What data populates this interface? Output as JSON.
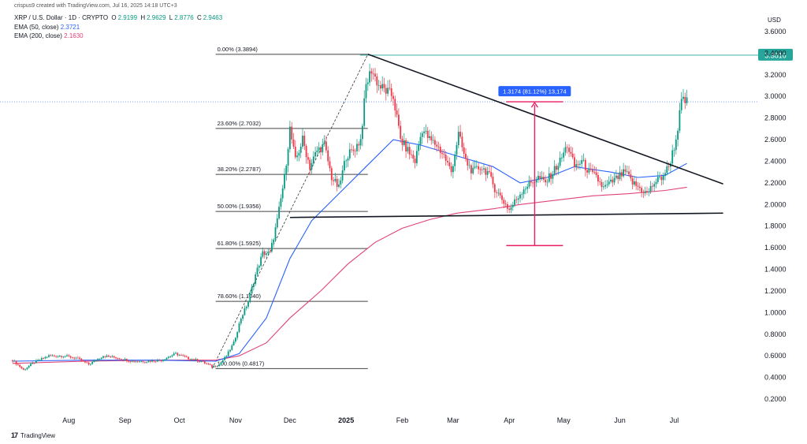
{
  "credit": "crispus9 created with TradingView.com, Jul 16, 2025 14:18 UTC+3",
  "symbol": "XRP / U.S. Dollar · 1D · CRYPTO",
  "ohlc": {
    "o_label": "O",
    "o": "2.9199",
    "h_label": "H",
    "h": "2.9629",
    "l_label": "L",
    "l": "2.8776",
    "c_label": "C",
    "c": "2.9463"
  },
  "ema50": {
    "label": "EMA (50, close)",
    "value": "2.3721"
  },
  "ema200": {
    "label": "EMA (200, close)",
    "value": "2.1630"
  },
  "currency": "USD",
  "price_tag": "3.3816",
  "measure_label": "1.3174 (81.12%) 13,174",
  "footer": "TradingView",
  "colors": {
    "up": "#089981",
    "down": "#f23645",
    "ema50": "#2962ff",
    "ema200": "#e0427a",
    "fib": "#131722",
    "tag": "#26a69a",
    "measure": "#e91e63",
    "measure_box": "#2962ff"
  },
  "chart_data": {
    "type": "candlestick",
    "y_axis": {
      "scale": "linear",
      "min": 0.2,
      "max": 3.6,
      "ticks": [
        "3.6000",
        "3.4000",
        "3.2000",
        "3.0000",
        "2.8000",
        "2.6000",
        "2.4000",
        "2.2000",
        "2.0000",
        "1.8000",
        "1.6000",
        "1.4000",
        "1.2000",
        "1.0000",
        "0.8000",
        "0.6000",
        "0.4000",
        "0.2000"
      ]
    },
    "x_axis": {
      "ticks": [
        "Aug",
        "Sep",
        "Oct",
        "Nov",
        "Dec",
        "2025",
        "Feb",
        "Mar",
        "Apr",
        "May",
        "Jun",
        "Jul"
      ]
    },
    "x_ticks_d": [
      31,
      62,
      92,
      123,
      153,
      184,
      215,
      243,
      274,
      304,
      335,
      365
    ],
    "fib_levels": [
      {
        "label": "0.00% (3.3894)",
        "price": 3.3894
      },
      {
        "label": "23.60% (2.7032)",
        "price": 2.7032
      },
      {
        "label": "38.20% (2.2787)",
        "price": 2.2787
      },
      {
        "label": "50.00% (1.9356)",
        "price": 1.9356
      },
      {
        "label": "61.80% (1.5925)",
        "price": 1.5925
      },
      {
        "label": "78.60% (1.1040)",
        "price": 1.104
      },
      {
        "label": "100.00% (0.4817)",
        "price": 0.4817
      }
    ],
    "fib_d": [
      112,
      196
    ],
    "fib_trend": {
      "from": {
        "d": 110,
        "p": 0.48
      },
      "to": {
        "d": 196,
        "p": 3.39
      }
    },
    "triangle_upper": {
      "from": {
        "d": 196,
        "p": 3.39
      },
      "to": {
        "d": 392,
        "p": 2.19
      }
    },
    "triangle_lower": {
      "from": {
        "d": 153,
        "p": 1.88
      },
      "to": {
        "d": 392,
        "p": 1.92
      }
    },
    "measure": {
      "d": 288,
      "from": 1.62,
      "to": 2.95
    },
    "last_price": 2.95,
    "price_line": 3.3816,
    "anchors": [
      [
        0,
        0.56
      ],
      [
        6,
        0.47
      ],
      [
        12,
        0.54
      ],
      [
        20,
        0.6
      ],
      [
        28,
        0.6
      ],
      [
        35,
        0.58
      ],
      [
        42,
        0.52
      ],
      [
        50,
        0.6
      ],
      [
        58,
        0.58
      ],
      [
        66,
        0.55
      ],
      [
        74,
        0.55
      ],
      [
        82,
        0.56
      ],
      [
        90,
        0.62
      ],
      [
        96,
        0.58
      ],
      [
        104,
        0.55
      ],
      [
        110,
        0.5
      ],
      [
        114,
        0.52
      ],
      [
        118,
        0.6
      ],
      [
        122,
        0.72
      ],
      [
        126,
        0.95
      ],
      [
        130,
        1.1
      ],
      [
        134,
        1.35
      ],
      [
        138,
        1.55
      ],
      [
        142,
        1.55
      ],
      [
        146,
        1.85
      ],
      [
        150,
        2.25
      ],
      [
        153,
        2.7
      ],
      [
        156,
        2.4
      ],
      [
        160,
        2.6
      ],
      [
        164,
        2.35
      ],
      [
        168,
        2.5
      ],
      [
        172,
        2.55
      ],
      [
        176,
        2.25
      ],
      [
        180,
        2.15
      ],
      [
        184,
        2.45
      ],
      [
        188,
        2.5
      ],
      [
        192,
        2.6
      ],
      [
        195,
        3.1
      ],
      [
        198,
        3.25
      ],
      [
        202,
        3.1
      ],
      [
        206,
        3.05
      ],
      [
        210,
        3.0
      ],
      [
        214,
        2.6
      ],
      [
        218,
        2.5
      ],
      [
        222,
        2.4
      ],
      [
        226,
        2.7
      ],
      [
        230,
        2.6
      ],
      [
        234,
        2.55
      ],
      [
        238,
        2.45
      ],
      [
        242,
        2.3
      ],
      [
        246,
        2.65
      ],
      [
        250,
        2.4
      ],
      [
        254,
        2.3
      ],
      [
        258,
        2.35
      ],
      [
        262,
        2.3
      ],
      [
        266,
        2.15
      ],
      [
        270,
        2.05
      ],
      [
        274,
        1.95
      ],
      [
        278,
        2.05
      ],
      [
        282,
        2.15
      ],
      [
        286,
        2.2
      ],
      [
        290,
        2.25
      ],
      [
        294,
        2.2
      ],
      [
        298,
        2.3
      ],
      [
        302,
        2.4
      ],
      [
        306,
        2.55
      ],
      [
        310,
        2.35
      ],
      [
        314,
        2.4
      ],
      [
        318,
        2.3
      ],
      [
        322,
        2.25
      ],
      [
        326,
        2.15
      ],
      [
        330,
        2.2
      ],
      [
        334,
        2.25
      ],
      [
        338,
        2.3
      ],
      [
        342,
        2.2
      ],
      [
        346,
        2.15
      ],
      [
        350,
        2.1
      ],
      [
        354,
        2.2
      ],
      [
        358,
        2.25
      ],
      [
        362,
        2.35
      ],
      [
        366,
        2.6
      ],
      [
        369,
        2.95
      ],
      [
        372,
        2.95
      ]
    ],
    "ema50_pts": [
      [
        0,
        0.55
      ],
      [
        40,
        0.56
      ],
      [
        80,
        0.56
      ],
      [
        112,
        0.55
      ],
      [
        125,
        0.62
      ],
      [
        140,
        0.95
      ],
      [
        153,
        1.5
      ],
      [
        165,
        1.85
      ],
      [
        180,
        2.1
      ],
      [
        195,
        2.35
      ],
      [
        210,
        2.6
      ],
      [
        225,
        2.55
      ],
      [
        245,
        2.45
      ],
      [
        265,
        2.35
      ],
      [
        280,
        2.2
      ],
      [
        295,
        2.25
      ],
      [
        310,
        2.35
      ],
      [
        330,
        2.3
      ],
      [
        345,
        2.25
      ],
      [
        360,
        2.27
      ],
      [
        372,
        2.38
      ]
    ],
    "ema200_pts": [
      [
        0,
        0.53
      ],
      [
        40,
        0.55
      ],
      [
        80,
        0.56
      ],
      [
        112,
        0.56
      ],
      [
        125,
        0.6
      ],
      [
        140,
        0.72
      ],
      [
        153,
        0.95
      ],
      [
        170,
        1.2
      ],
      [
        185,
        1.45
      ],
      [
        200,
        1.65
      ],
      [
        215,
        1.78
      ],
      [
        230,
        1.86
      ],
      [
        245,
        1.92
      ],
      [
        265,
        1.96
      ],
      [
        280,
        2.0
      ],
      [
        300,
        2.04
      ],
      [
        320,
        2.08
      ],
      [
        340,
        2.1
      ],
      [
        360,
        2.13
      ],
      [
        372,
        2.16
      ]
    ]
  }
}
